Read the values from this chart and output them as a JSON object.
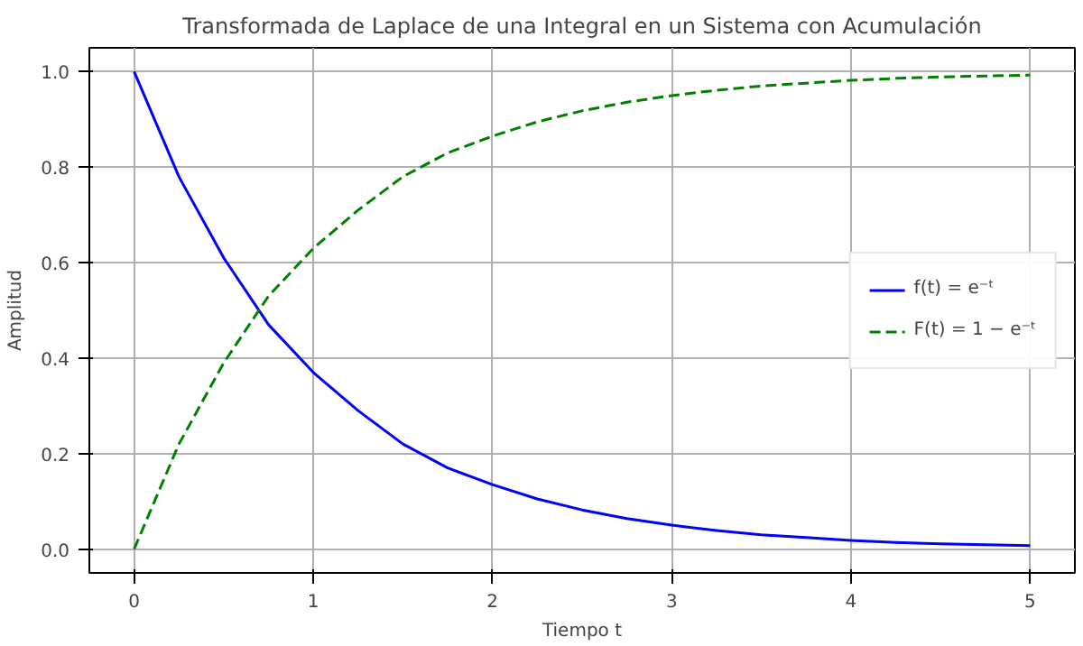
{
  "chart_data": {
    "type": "line",
    "title": "Transformada de Laplace de una Integral en un Sistema con Acumulación",
    "xlabel": "Tiempo t",
    "ylabel": "Amplitud",
    "x": [
      0,
      0.25,
      0.5,
      0.75,
      1,
      1.25,
      1.5,
      1.75,
      2,
      2.25,
      2.5,
      2.75,
      3,
      3.25,
      3.5,
      3.75,
      4,
      4.25,
      4.5,
      4.75,
      5
    ],
    "series": [
      {
        "name": "f(t) = e⁻ᵗ",
        "color": "#0000ff",
        "line_style": "solid",
        "values": [
          1,
          0.78,
          0.61,
          0.47,
          0.37,
          0.29,
          0.22,
          0.17,
          0.135,
          0.105,
          0.082,
          0.064,
          0.05,
          0.039,
          0.03,
          0.024,
          0.018,
          0.014,
          0.011,
          0.009,
          0.007
        ]
      },
      {
        "name": "F(t) = 1 − e⁻ᵗ",
        "color": "#008000",
        "line_style": "dashed",
        "values": [
          0,
          0.22,
          0.39,
          0.53,
          0.63,
          0.71,
          0.78,
          0.83,
          0.865,
          0.895,
          0.918,
          0.936,
          0.95,
          0.961,
          0.97,
          0.976,
          0.982,
          0.986,
          0.989,
          0.991,
          0.993
        ]
      }
    ],
    "xlim": [
      -0.25,
      5.25
    ],
    "ylim": [
      -0.05,
      1.05
    ],
    "xticks": [
      0,
      1,
      2,
      3,
      4,
      5
    ],
    "yticks": [
      {
        "value": 0,
        "label": "0.0"
      },
      0.2,
      0.4,
      0.6,
      0.8,
      {
        "value": 1,
        "label": "1.0"
      }
    ],
    "grid": true,
    "legend": "right",
    "marker": "none"
  }
}
